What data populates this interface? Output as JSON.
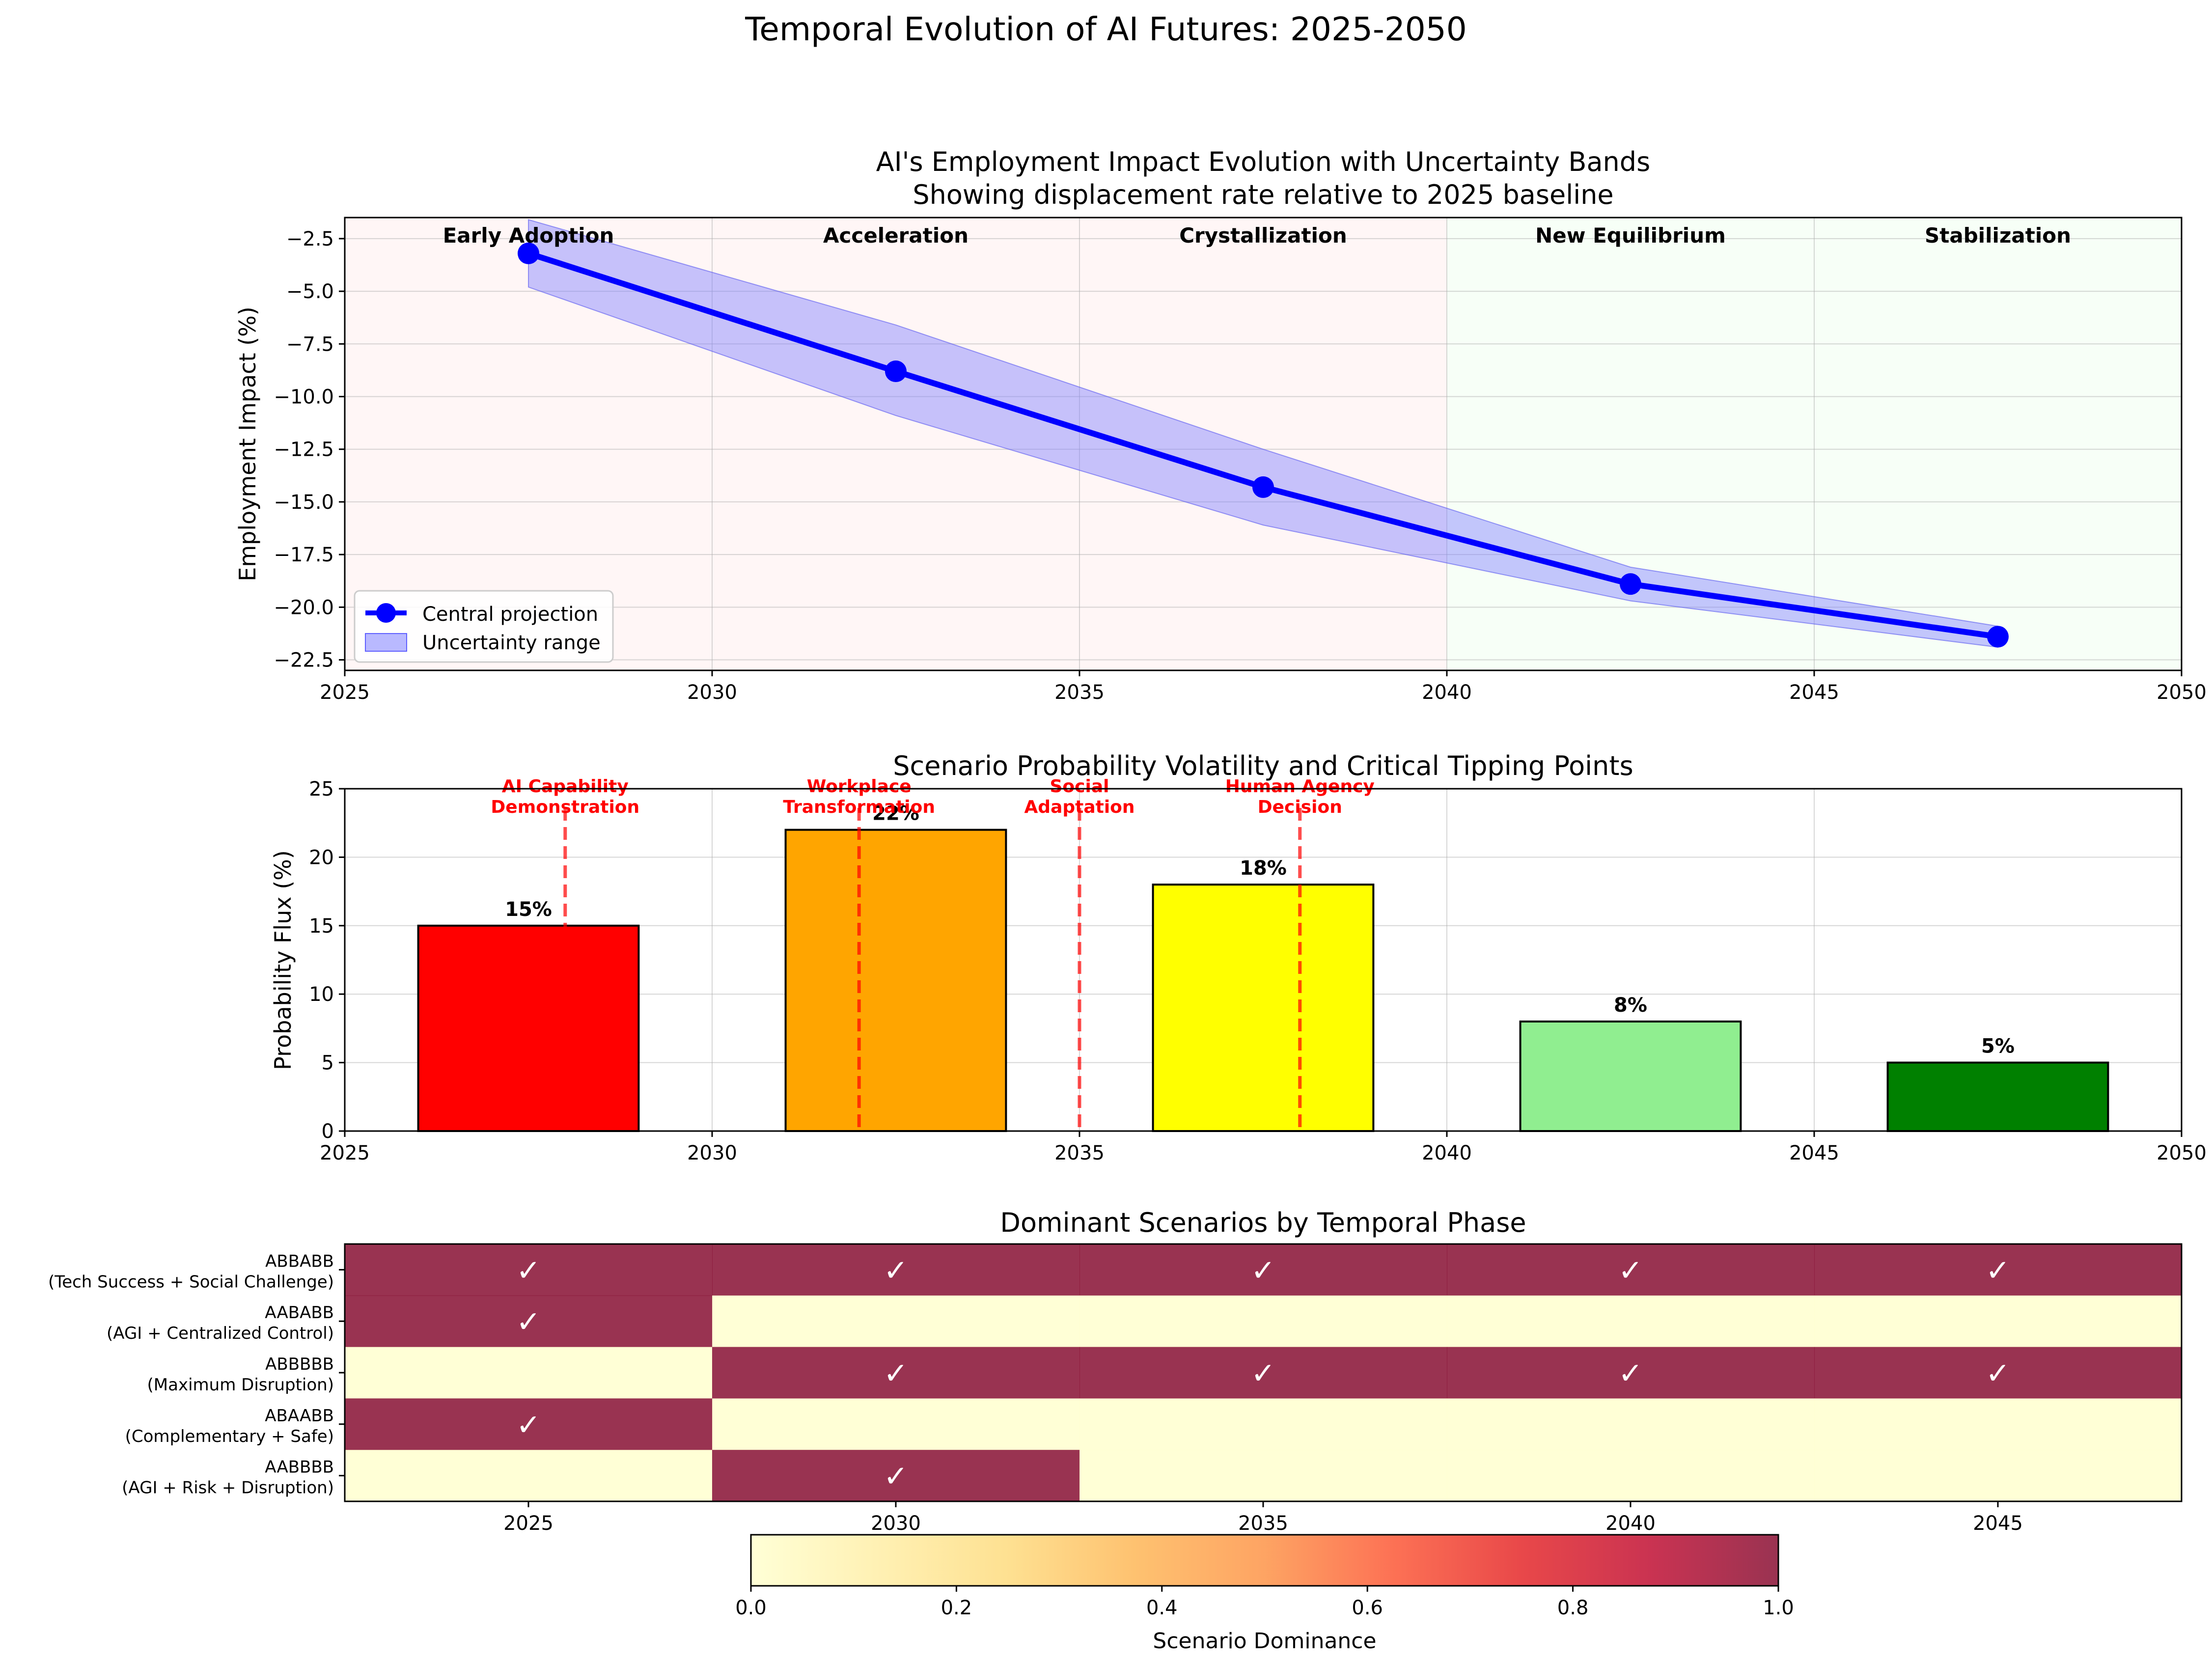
{
  "figure_title": "Temporal Evolution of AI Futures: 2025-2050",
  "colors": {
    "line": "#0000ff",
    "band": "#8080ff",
    "early_phase_bg": "#ffe0e0",
    "late_phase_bg": "#e6ffe6",
    "tipping": "#ff0000",
    "grid": "#b0b0b0"
  },
  "chart_data": [
    {
      "type": "line",
      "title": "AI's Employment Impact Evolution with Uncertainty Bands",
      "subtitle": "Showing displacement rate relative to 2025 baseline",
      "xlabel": "",
      "ylabel": "Employment Impact (%)",
      "xlim": [
        2025,
        2050
      ],
      "ylim": [
        -23,
        -1.5
      ],
      "x_ticks": [
        2025,
        2030,
        2035,
        2040,
        2045,
        2050
      ],
      "y_ticks": [
        -22.5,
        -20.0,
        -17.5,
        -15.0,
        -12.5,
        -10.0,
        -7.5,
        -5.0,
        -2.5
      ],
      "phases": [
        {
          "label": "Early Adoption",
          "start": 2025,
          "end": 2030,
          "tone": "early"
        },
        {
          "label": "Acceleration",
          "start": 2030,
          "end": 2035,
          "tone": "early"
        },
        {
          "label": "Crystallization",
          "start": 2035,
          "end": 2040,
          "tone": "early"
        },
        {
          "label": "New Equilibrium",
          "start": 2040,
          "end": 2045,
          "tone": "late"
        },
        {
          "label": "Stabilization",
          "start": 2045,
          "end": 2050,
          "tone": "late"
        }
      ],
      "series": [
        {
          "name": "Central projection",
          "x": [
            2027.5,
            2032.5,
            2037.5,
            2042.5,
            2047.5
          ],
          "values": [
            -3.2,
            -8.8,
            -14.3,
            -18.9,
            -21.4
          ]
        }
      ],
      "band": {
        "name": "Uncertainty range",
        "x": [
          2027.5,
          2032.5,
          2037.5,
          2042.5,
          2047.5
        ],
        "upper": [
          -1.6,
          -6.6,
          -12.5,
          -18.1,
          -20.9
        ],
        "lower": [
          -4.8,
          -10.9,
          -16.1,
          -19.7,
          -21.9
        ]
      },
      "legend": "lower-left",
      "grid": true
    },
    {
      "type": "bar",
      "title": "Scenario Probability Volatility and Critical Tipping Points",
      "xlabel": "",
      "ylabel": "Probability Flux (%)",
      "xlim": [
        2025,
        2050
      ],
      "ylim": [
        0,
        25
      ],
      "x_ticks": [
        2025,
        2030,
        2035,
        2040,
        2045,
        2050
      ],
      "y_ticks": [
        0,
        5,
        10,
        15,
        20,
        25
      ],
      "bars": [
        {
          "x": 2027.5,
          "width": 3,
          "value": 15,
          "label": "15%",
          "color": "#ff0000"
        },
        {
          "x": 2032.5,
          "width": 3,
          "value": 22,
          "label": "22%",
          "color": "#ffa500"
        },
        {
          "x": 2037.5,
          "width": 3,
          "value": 18,
          "label": "18%",
          "color": "#ffff00"
        },
        {
          "x": 2042.5,
          "width": 3,
          "value": 8,
          "label": "8%",
          "color": "#90ee90"
        },
        {
          "x": 2047.5,
          "width": 3,
          "value": 5,
          "label": "5%",
          "color": "#008000"
        }
      ],
      "tipping_points": [
        {
          "x": 2028,
          "lines": [
            "AI Capability",
            "Demonstration"
          ]
        },
        {
          "x": 2032,
          "lines": [
            "Workplace",
            "Transformation"
          ]
        },
        {
          "x": 2035,
          "lines": [
            "Social",
            "Adaptation"
          ]
        },
        {
          "x": 2038,
          "lines": [
            "Human Agency",
            "Decision"
          ]
        }
      ],
      "grid": true
    },
    {
      "type": "heatmap",
      "title": "Dominant Scenarios by Temporal Phase",
      "columns": [
        "2025",
        "2030",
        "2035",
        "2040",
        "2045"
      ],
      "rows": [
        {
          "code": "ABBABB",
          "desc": "(Tech Success + Social Challenge)",
          "values": [
            1,
            1,
            1,
            1,
            1
          ]
        },
        {
          "code": "AABABB",
          "desc": "(AGI + Centralized Control)",
          "values": [
            1,
            0,
            0,
            0,
            0
          ]
        },
        {
          "code": "ABBBBB",
          "desc": "(Maximum Disruption)",
          "values": [
            0,
            1,
            1,
            1,
            1
          ]
        },
        {
          "code": "ABAABB",
          "desc": "(Complementary + Safe)",
          "values": [
            1,
            0,
            0,
            0,
            0
          ]
        },
        {
          "code": "AABBBB",
          "desc": "(AGI + Risk + Disruption)",
          "values": [
            0,
            1,
            0,
            0,
            0
          ]
        }
      ],
      "check_mark": "✓",
      "colorbar": {
        "label": "Scenario Dominance",
        "min": 0.0,
        "max": 1.0,
        "ticks": [
          "0.0",
          "0.2",
          "0.4",
          "0.6",
          "0.8",
          "1.0"
        ],
        "colormap": "YlOrRd",
        "cmap_colors": [
          "#ffffcc",
          "#ffeda0",
          "#fed976",
          "#feb24c",
          "#fd8d3c",
          "#fc4e2a",
          "#e31a1c",
          "#bd0026",
          "#800026"
        ],
        "alpha": 0.8
      }
    }
  ]
}
